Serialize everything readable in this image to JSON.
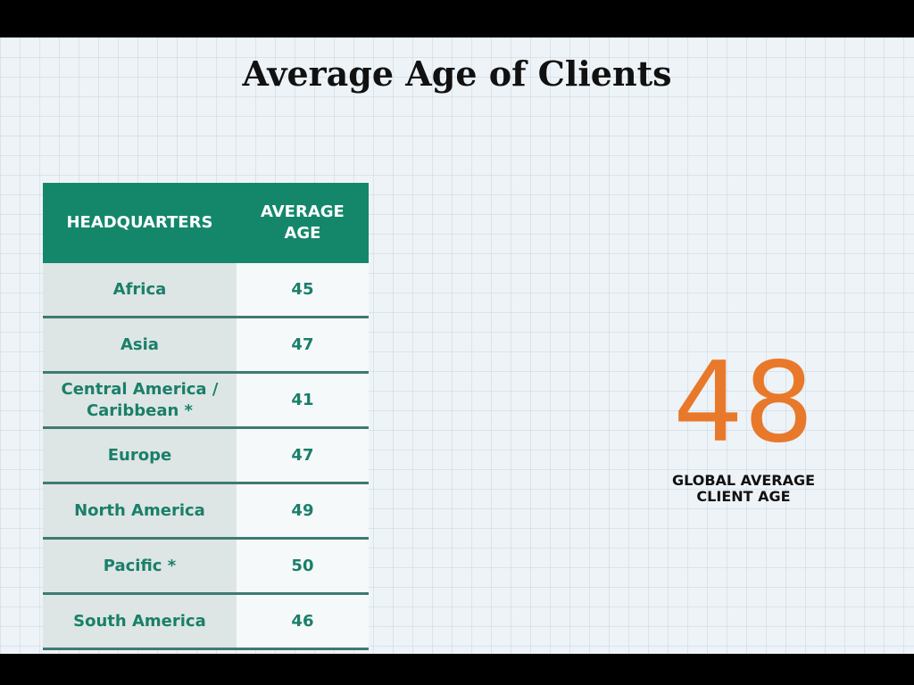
{
  "title": "Average Age of Clients",
  "table": {
    "headers": [
      "HEADQUARTERS",
      "AVERAGE AGE"
    ],
    "rows": [
      [
        "Africa",
        "45"
      ],
      [
        "Asia",
        "47"
      ],
      [
        "Central America / Caribbean *",
        "41"
      ],
      [
        "Europe",
        "47"
      ],
      [
        "North America",
        "49"
      ],
      [
        "Pacific *",
        "50"
      ],
      [
        "South America",
        "46"
      ]
    ]
  },
  "stat": {
    "value": "48",
    "label": "GLOBAL AVERAGE CLIENT AGE"
  }
}
